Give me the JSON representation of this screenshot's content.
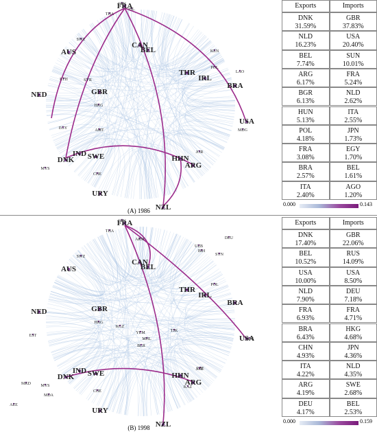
{
  "panels": [
    {
      "caption": "(A) 1986",
      "nodes": [
        "CPV",
        "ISL",
        "FRA",
        "THA",
        "CAN",
        "BEL",
        "AUS",
        "SWZ",
        "KEN",
        "POL",
        "LAO",
        "THR",
        "IRL",
        "BRA",
        "NED",
        "GBR",
        "HKG",
        "SYR",
        "ETH",
        "AMT",
        "USA",
        "MDG",
        "IND",
        "SWE",
        "DNK",
        "CHE",
        "HHN",
        "ARG",
        "JOR",
        "URY",
        "NZL",
        "MYS",
        "EGY"
      ],
      "table": {
        "headers": [
          "Exports",
          "Imports"
        ],
        "rows": [
          [
            [
              "DNK",
              "31.59%"
            ],
            [
              "GBR",
              "37.83%"
            ]
          ],
          [
            [
              "NLD",
              "16.23%"
            ],
            [
              "USA",
              "20.40%"
            ]
          ],
          [
            [
              "BEL",
              "7.74%"
            ],
            [
              "SUN",
              "10.01%"
            ]
          ],
          [
            [
              "ARG",
              "6.17%"
            ],
            [
              "FRA",
              "5.24%"
            ]
          ],
          [
            [
              "BGR",
              "6.13%"
            ],
            [
              "NLD",
              "2.62%"
            ]
          ],
          [
            [
              "HUN",
              "5.13%"
            ],
            [
              "ITA",
              "2.55%"
            ]
          ],
          [
            [
              "POL",
              "4.18%"
            ],
            [
              "JPN",
              "1.73%"
            ]
          ],
          [
            [
              "FRA",
              "3.08%"
            ],
            [
              "EGY",
              "1.70%"
            ]
          ],
          [
            [
              "BRA",
              "2.57%"
            ],
            [
              "BEL",
              "1.61%"
            ]
          ],
          [
            [
              "ITA",
              "2.40%"
            ],
            [
              "AGO",
              "1.20%"
            ]
          ]
        ]
      },
      "colorbar": [
        "0.000",
        "0.143"
      ]
    },
    {
      "caption": "(B) 1998",
      "nodes": [
        "CPV",
        "FRA",
        "THA",
        "ARM",
        "CAN",
        "BEL",
        "UZB",
        "DEU",
        "SYN",
        "BIH",
        "AUS",
        "SWZ",
        "POL",
        "THR",
        "IRL",
        "BRA",
        "NED",
        "EST",
        "GBR",
        "HKG",
        "KGZ",
        "YEM",
        "TJK",
        "MHL",
        "BLR",
        "USA",
        "YUG",
        "AZE",
        "MKD",
        "MYS",
        "MDA",
        "IND",
        "SWE",
        "CZE",
        "JOR",
        "DNK",
        "HHN",
        "ARG",
        "KAZ",
        "CHE",
        "URY",
        "NZL"
      ],
      "table": {
        "headers": [
          "Exports",
          "Imports"
        ],
        "rows": [
          [
            [
              "DNK",
              "17.40%"
            ],
            [
              "GBR",
              "22.06%"
            ]
          ],
          [
            [
              "BEL",
              "10.52%"
            ],
            [
              "RUS",
              "14.09%"
            ]
          ],
          [
            [
              "USA",
              "10.00%"
            ],
            [
              "USA",
              "8.50%"
            ]
          ],
          [
            [
              "NLD",
              "7.90%"
            ],
            [
              "DEU",
              "7.18%"
            ]
          ],
          [
            [
              "FRA",
              "6.93%"
            ],
            [
              "FRA",
              "4.71%"
            ]
          ],
          [
            [
              "BRA",
              "6.43%"
            ],
            [
              "HKG",
              "4.68%"
            ]
          ],
          [
            [
              "CHN",
              "4.93%"
            ],
            [
              "JPN",
              "4.36%"
            ]
          ],
          [
            [
              "ITA",
              "4.22%"
            ],
            [
              "NLD",
              "4.35%"
            ]
          ],
          [
            [
              "ARG",
              "4.19%"
            ],
            [
              "SWE",
              "2.68%"
            ]
          ],
          [
            [
              "DEU",
              "4.17%"
            ],
            [
              "BEL",
              "2.53%"
            ]
          ]
        ]
      },
      "colorbar": [
        "0.000",
        "0.159"
      ]
    }
  ]
}
